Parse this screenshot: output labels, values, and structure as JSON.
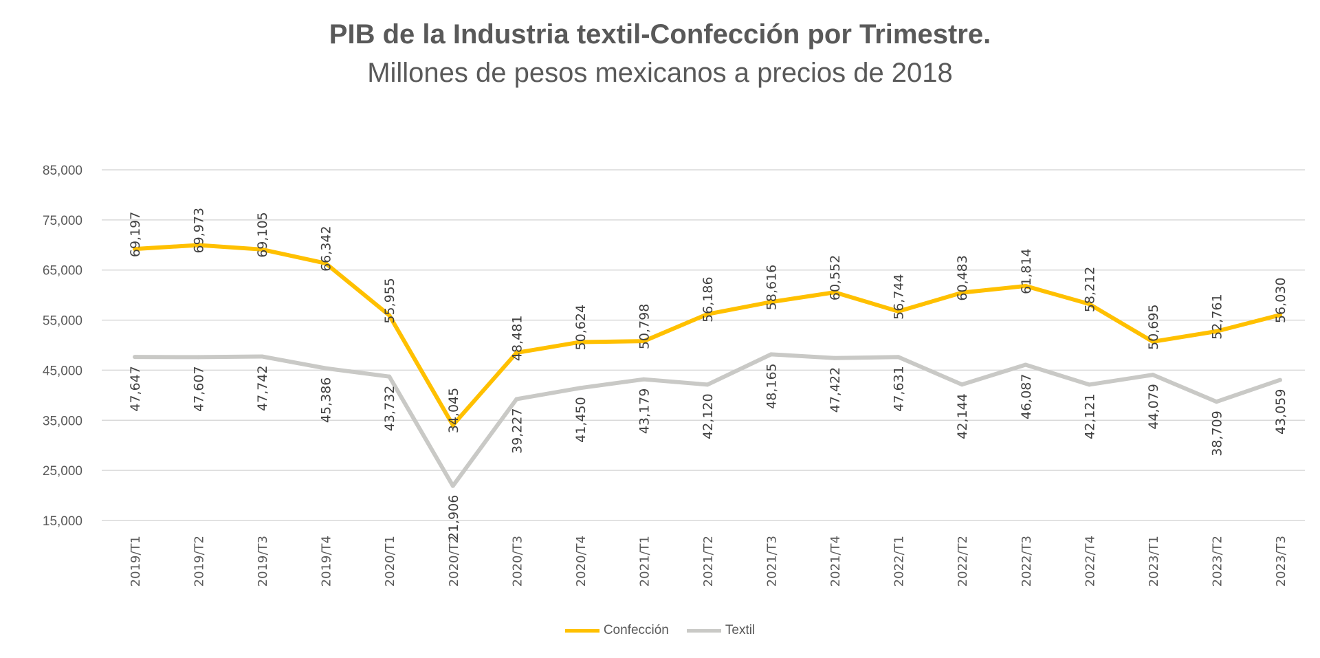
{
  "chart_data": {
    "type": "line",
    "title": "PIB de la Industria textil-Confección por Trimestre.",
    "subtitle": "Millones de pesos mexicanos a precios de 2018",
    "xlabel": "",
    "ylabel": "",
    "ylim": [
      15000,
      85000
    ],
    "yticks": [
      15000,
      25000,
      35000,
      45000,
      55000,
      65000,
      75000,
      85000
    ],
    "ytick_labels": [
      "15,000",
      "25,000",
      "35,000",
      "45,000",
      "55,000",
      "65,000",
      "75,000",
      "85,000"
    ],
    "grid": true,
    "legend_position": "bottom",
    "categories": [
      "2019/T1",
      "2019/T2",
      "2019/T3",
      "2019/T4",
      "2020/T1",
      "2020/T2",
      "2020/T3",
      "2020/T4",
      "2021/T1",
      "2021/T2",
      "2021/T3",
      "2021/T4",
      "2022/T1",
      "2022/T2",
      "2022/T3",
      "2022/T4",
      "2023/T1",
      "2023/T2",
      "2023/T3"
    ],
    "series": [
      {
        "name": "Confección",
        "color": "#FFC000",
        "label_position": "above",
        "values": [
          69197,
          69973,
          69105,
          66342,
          55955,
          34045,
          48481,
          50624,
          50798,
          56186,
          58616,
          60552,
          56744,
          60483,
          61814,
          58212,
          50695,
          52761,
          56030
        ]
      },
      {
        "name": "Textil",
        "color": "#C9C9C6",
        "label_position": "below",
        "values": [
          47647,
          47607,
          47742,
          45386,
          43732,
          21906,
          39227,
          41450,
          43179,
          42120,
          48165,
          47422,
          47631,
          42144,
          46087,
          42121,
          44079,
          38709,
          43059
        ]
      }
    ]
  }
}
